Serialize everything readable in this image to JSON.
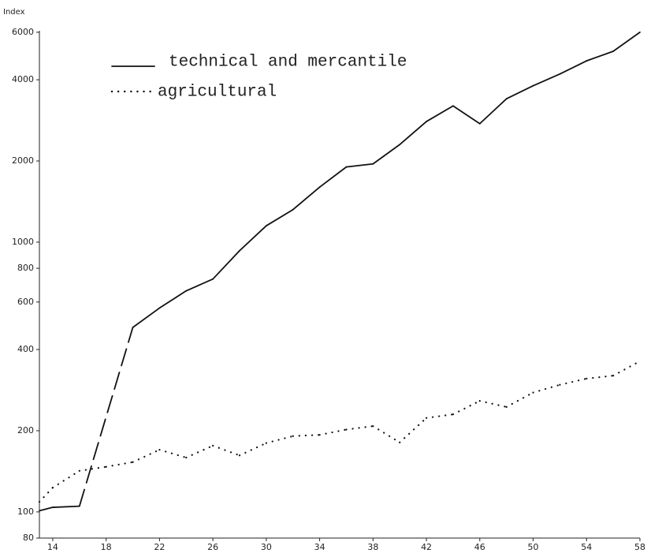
{
  "chart_data": {
    "type": "line",
    "y_label": "Index",
    "log_scale_y": true,
    "xlim": [
      13,
      58
    ],
    "xticks": [
      14,
      18,
      22,
      26,
      30,
      34,
      38,
      42,
      46,
      50,
      54,
      58
    ],
    "ylim": [
      80,
      6500
    ],
    "yticks": [
      80,
      100,
      200,
      400,
      600,
      800,
      1000,
      2000,
      4000,
      6000
    ],
    "legend": "upper left",
    "x": [
      13,
      14,
      16,
      20,
      22,
      24,
      26,
      28,
      30,
      32,
      34,
      36,
      38,
      40,
      42,
      44,
      46,
      48,
      50,
      52,
      54,
      56,
      58
    ],
    "series": [
      {
        "name": "technical and mercantile",
        "color": "#111111",
        "style": "solid",
        "x": [
          13,
          14,
          16,
          20,
          22,
          24,
          26,
          28,
          30,
          32,
          34,
          36,
          38,
          40,
          42,
          44,
          46,
          48,
          50,
          52,
          54,
          56,
          58
        ],
        "values": [
          101,
          104,
          105,
          483,
          570,
          660,
          730,
          930,
          1150,
          1320,
          1600,
          1900,
          1950,
          2300,
          2800,
          3200,
          2750,
          3400,
          3800,
          4200,
          4700,
          5100,
          6000
        ]
      },
      {
        "name": "agricultural",
        "color": "#111111",
        "style": "dotted",
        "x": [
          13,
          14,
          16,
          18,
          20,
          22,
          24,
          26,
          28,
          30,
          32,
          34,
          36,
          38,
          40,
          42,
          44,
          46,
          48,
          50,
          52,
          54,
          56,
          58
        ],
        "values": [
          109,
          123,
          142,
          147,
          153,
          170,
          159,
          176,
          162,
          180,
          191,
          193,
          202,
          208,
          181,
          223,
          230,
          258,
          245,
          277,
          296,
          312,
          320,
          362
        ]
      }
    ]
  }
}
